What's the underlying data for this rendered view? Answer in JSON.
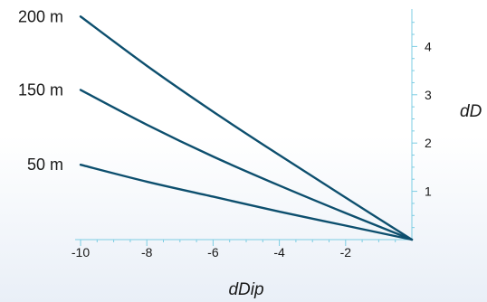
{
  "chart_data": {
    "type": "line",
    "xlabel": "dDip",
    "ylabel": "dD",
    "xlim": [
      -10,
      0
    ],
    "ylim": [
      0,
      4.7
    ],
    "x_ticks": [
      -10,
      -8,
      -6,
      -4,
      -2
    ],
    "y_ticks": [
      1,
      2,
      3,
      4
    ],
    "grid": false,
    "legend": "inline labels at left end of each line",
    "line_color": "#0d4f6e",
    "axis_color": "#7ccde3",
    "series": [
      {
        "name": "200 m",
        "x": [
          -10,
          -8,
          -6,
          -4,
          -2,
          0
        ],
        "y": [
          4.62,
          3.6,
          2.65,
          1.75,
          0.87,
          0
        ]
      },
      {
        "name": "150 m",
        "x": [
          -10,
          -8,
          -6,
          -4,
          -2,
          0
        ],
        "y": [
          3.1,
          2.38,
          1.72,
          1.12,
          0.55,
          0
        ]
      },
      {
        "name": "50 m",
        "x": [
          -10,
          -8,
          -6,
          -4,
          -2,
          0
        ],
        "y": [
          1.55,
          1.2,
          0.89,
          0.58,
          0.29,
          0
        ]
      }
    ]
  }
}
